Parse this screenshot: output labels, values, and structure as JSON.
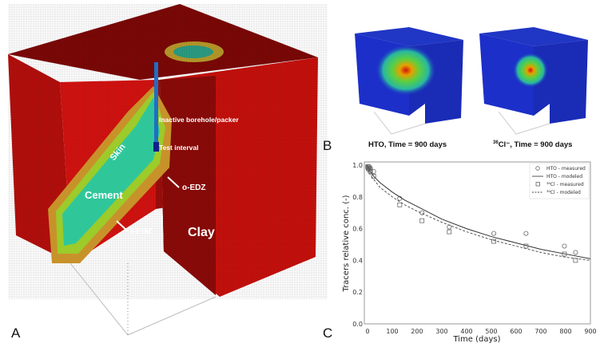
{
  "panel_a": {
    "letter": "A",
    "labels": {
      "inactive": "Inactive borehole/packer",
      "test_interval": "Test interval",
      "skin": "Skin",
      "cement": "Cement",
      "oedz": "o-EDZ",
      "iedz": "i-EDZ",
      "clay": "Clay"
    },
    "colors": {
      "clay": "#c8100c",
      "clay_dark": "#8a0a08",
      "cement": "#2fc79a",
      "skin": "#c9a12a",
      "borehole": "#1e6fc6"
    }
  },
  "panel_b": {
    "letter": "B",
    "captions": [
      {
        "prefix": "HTO",
        "text": "HTO, Time = 900 days"
      },
      {
        "sup": "36",
        "text": "Cl⁻, Time = 900 days"
      }
    ],
    "colors": {
      "domain": "#1c2fc9"
    }
  },
  "panel_c": {
    "letter": "C"
  },
  "chart_data": {
    "type": "scatter",
    "xlabel": "Time (days)",
    "ylabel": "Tracers relative conc. (-)",
    "xlim": [
      0,
      900
    ],
    "ylim": [
      0.0,
      1.0
    ],
    "xticks": [
      0,
      100,
      200,
      300,
      400,
      500,
      600,
      700,
      800,
      900
    ],
    "yticks": [
      "0.0",
      "0.2",
      "0.4",
      "0.6",
      "0.8",
      "1.0"
    ],
    "legend_position": "top-right",
    "series": [
      {
        "name": "HTO - measured",
        "kind": "circle",
        "x": [
          1,
          3,
          5,
          8,
          12,
          25,
          130,
          220,
          330,
          510,
          640,
          795,
          840
        ],
        "y": [
          0.99,
          0.99,
          0.98,
          0.99,
          0.98,
          0.96,
          0.79,
          0.7,
          0.61,
          0.57,
          0.57,
          0.49,
          0.45
        ]
      },
      {
        "name": "HTO - modeled",
        "kind": "solid",
        "x": [
          0,
          10,
          25,
          50,
          100,
          150,
          200,
          300,
          400,
          500,
          600,
          700,
          800,
          900
        ],
        "y": [
          1.0,
          0.96,
          0.93,
          0.89,
          0.83,
          0.78,
          0.74,
          0.66,
          0.6,
          0.55,
          0.51,
          0.47,
          0.44,
          0.41
        ]
      },
      {
        "name": "³⁶Cl - measured",
        "kind": "square",
        "x": [
          1,
          3,
          5,
          8,
          12,
          25,
          130,
          220,
          330,
          510,
          640,
          795,
          840
        ],
        "y": [
          0.99,
          0.98,
          0.98,
          0.97,
          0.96,
          0.93,
          0.75,
          0.65,
          0.58,
          0.52,
          0.49,
          0.44,
          0.4
        ]
      },
      {
        "name": "³⁶Cl - modeled",
        "kind": "dashed",
        "x": [
          0,
          10,
          25,
          50,
          100,
          150,
          200,
          300,
          400,
          500,
          600,
          700,
          800,
          900
        ],
        "y": [
          1.0,
          0.94,
          0.91,
          0.86,
          0.8,
          0.75,
          0.71,
          0.64,
          0.58,
          0.53,
          0.49,
          0.45,
          0.42,
          0.4
        ]
      }
    ]
  }
}
